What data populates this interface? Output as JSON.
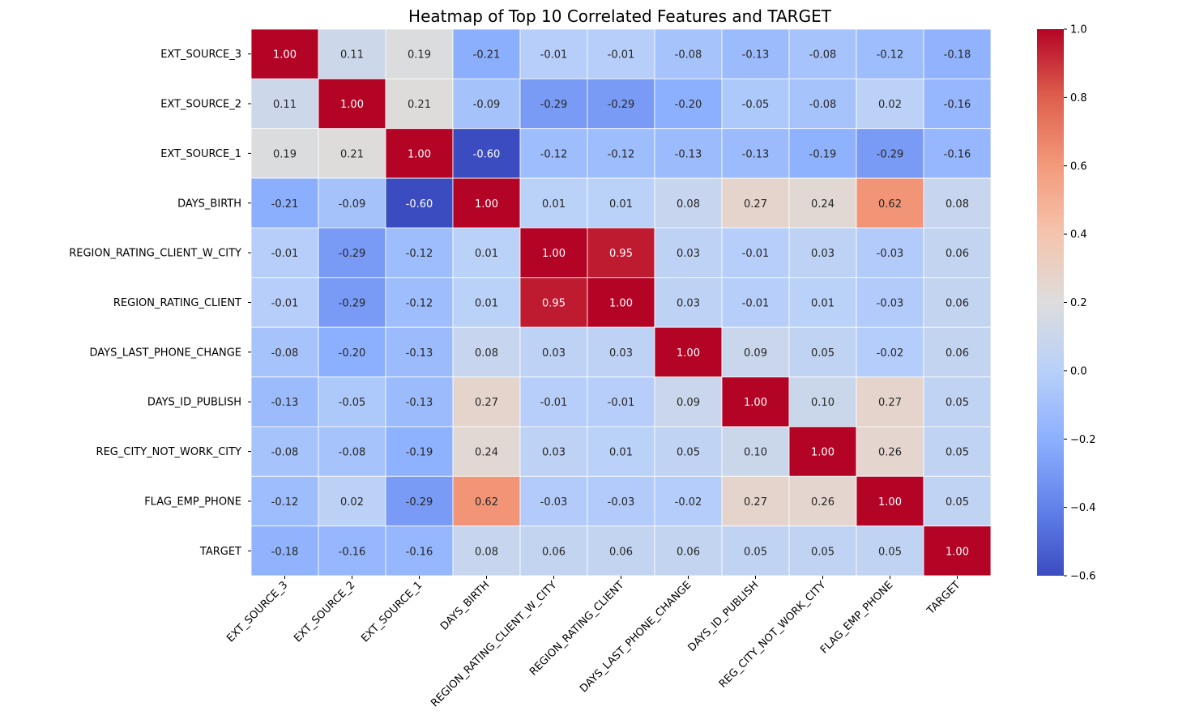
{
  "chart_data": {
    "type": "heatmap",
    "title": "Heatmap of Top 10 Correlated Features and TARGET",
    "xlabel": "",
    "ylabel": "",
    "labels": [
      "EXT_SOURCE_3",
      "EXT_SOURCE_2",
      "EXT_SOURCE_1",
      "DAYS_BIRTH",
      "REGION_RATING_CLIENT_W_CITY",
      "REGION_RATING_CLIENT",
      "DAYS_LAST_PHONE_CHANGE",
      "DAYS_ID_PUBLISH",
      "REG_CITY_NOT_WORK_CITY",
      "FLAG_EMP_PHONE",
      "TARGET"
    ],
    "values": [
      [
        1.0,
        0.11,
        0.19,
        -0.21,
        -0.01,
        -0.01,
        -0.08,
        -0.13,
        -0.08,
        -0.12,
        -0.18
      ],
      [
        0.11,
        1.0,
        0.21,
        -0.09,
        -0.29,
        -0.29,
        -0.2,
        -0.05,
        -0.08,
        0.02,
        -0.16
      ],
      [
        0.19,
        0.21,
        1.0,
        -0.6,
        -0.12,
        -0.12,
        -0.13,
        -0.13,
        -0.19,
        -0.29,
        -0.16
      ],
      [
        -0.21,
        -0.09,
        -0.6,
        1.0,
        0.01,
        0.01,
        0.08,
        0.27,
        0.24,
        0.62,
        0.08
      ],
      [
        -0.01,
        -0.29,
        -0.12,
        0.01,
        1.0,
        0.95,
        0.03,
        -0.01,
        0.03,
        -0.03,
        0.06
      ],
      [
        -0.01,
        -0.29,
        -0.12,
        0.01,
        0.95,
        1.0,
        0.03,
        -0.01,
        0.01,
        -0.03,
        0.06
      ],
      [
        -0.08,
        -0.2,
        -0.13,
        0.08,
        0.03,
        0.03,
        1.0,
        0.09,
        0.05,
        -0.02,
        0.06
      ],
      [
        -0.13,
        -0.05,
        -0.13,
        0.27,
        -0.01,
        -0.01,
        0.09,
        1.0,
        0.1,
        0.27,
        0.05
      ],
      [
        -0.08,
        -0.08,
        -0.19,
        0.24,
        0.03,
        0.01,
        0.05,
        0.1,
        1.0,
        0.26,
        0.05
      ],
      [
        -0.12,
        0.02,
        -0.29,
        0.62,
        -0.03,
        -0.03,
        -0.02,
        0.27,
        0.26,
        1.0,
        0.05
      ],
      [
        -0.18,
        -0.16,
        -0.16,
        0.08,
        0.06,
        0.06,
        0.06,
        0.05,
        0.05,
        0.05,
        1.0
      ]
    ],
    "value_format": "2 decimals",
    "colormap": "coolwarm",
    "colorbar": {
      "range": [
        -0.6,
        1.0
      ],
      "ticks": [
        "−0.6",
        "−0.4",
        "−0.2",
        "0.0",
        "0.2",
        "0.4",
        "0.6",
        "0.8",
        "1.0"
      ]
    },
    "grid": false,
    "legend": "colorbar right"
  }
}
